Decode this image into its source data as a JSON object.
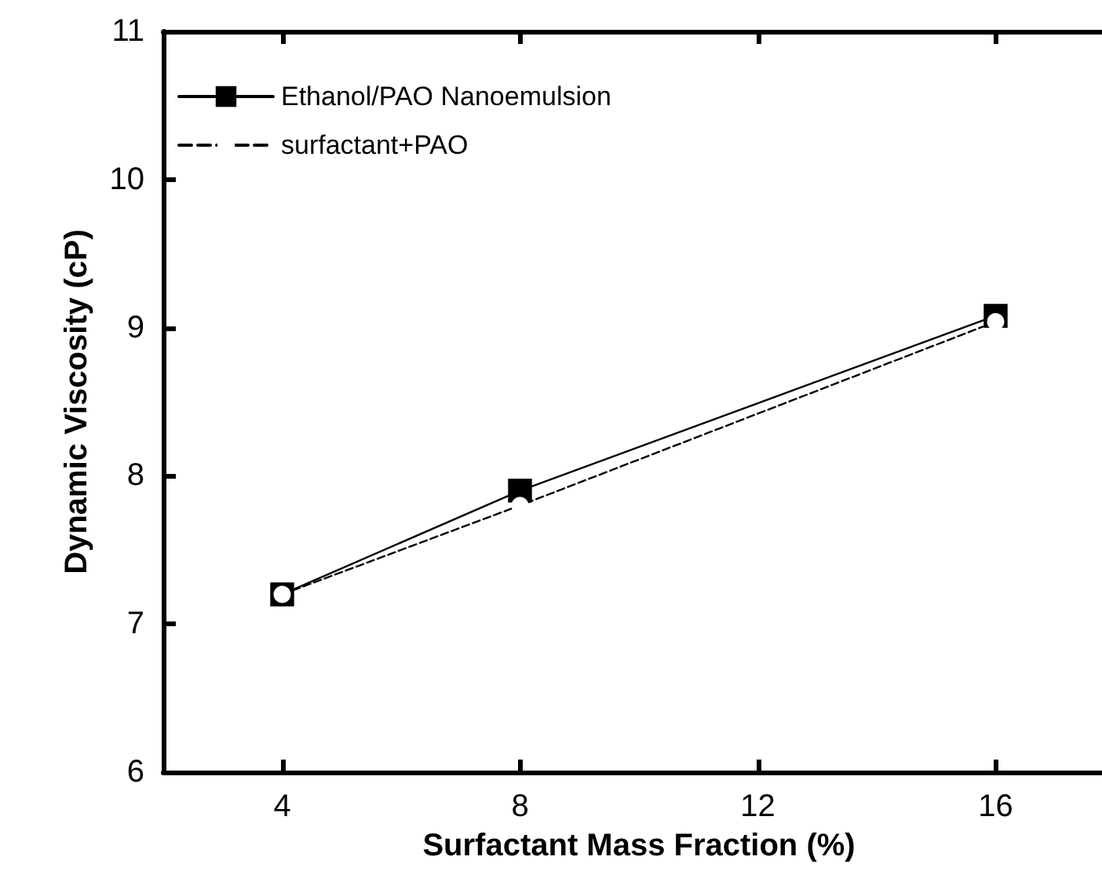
{
  "chart_data": {
    "type": "line",
    "xlabel": "Surfactant Mass Fraction (%)",
    "ylabel": "Dynamic Viscosity (cP)",
    "x": [
      4,
      8,
      16
    ],
    "series": [
      {
        "name": "Ethanol/PAO Nanoemulsion",
        "color": "#000000",
        "values": [
          7.2,
          7.9,
          9.08
        ],
        "marker": "square",
        "line_style": "solid"
      },
      {
        "name": "surfactant+PAO",
        "color": "#000000",
        "values": [
          7.2,
          7.8,
          9.04
        ],
        "marker": "circle",
        "line_style": "dashed"
      }
    ],
    "xlim": [
      2,
      18
    ],
    "xticks": [
      4,
      8,
      12,
      16
    ],
    "ylim": [
      6,
      11
    ],
    "yticks": [
      6,
      7,
      8,
      9,
      10,
      11
    ],
    "grid": false,
    "legend": "top left"
  }
}
